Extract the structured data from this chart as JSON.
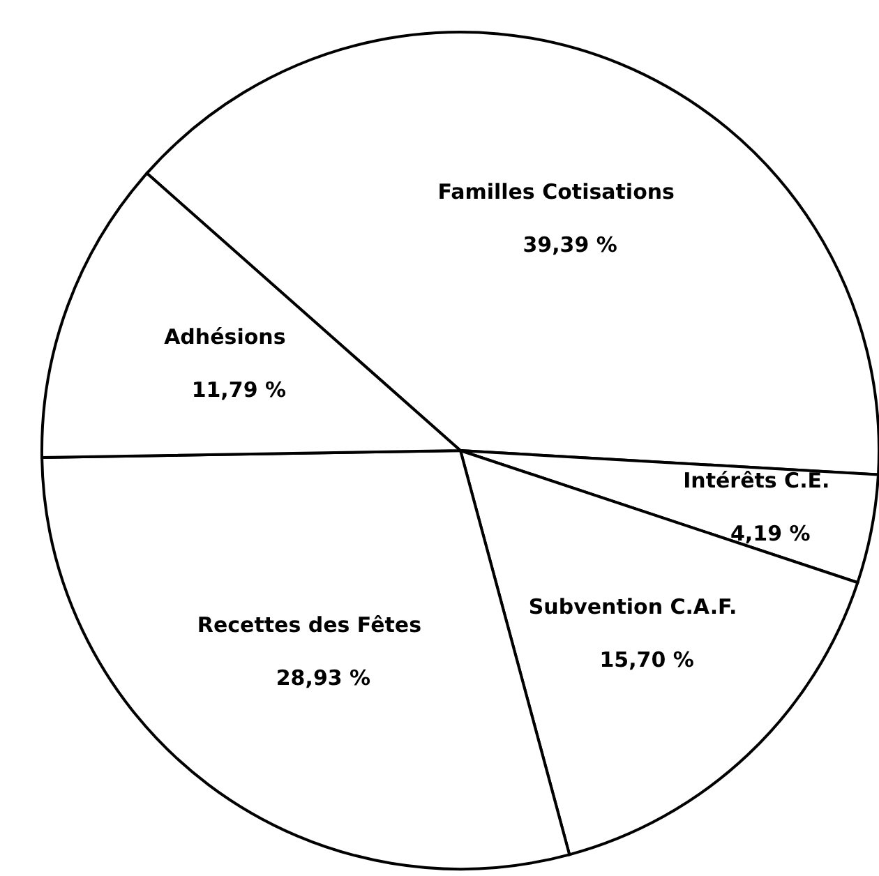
{
  "chart_data": {
    "type": "pie",
    "categories": [
      "Familles Cotisations",
      "Intérêts C.E.",
      "Subvention C.A.F.",
      "Recettes des Fêtes",
      "Adhésions"
    ],
    "values": [
      39.39,
      4.19,
      15.7,
      28.93,
      11.79
    ],
    "value_labels": [
      "39,39 %",
      "4,19 %",
      "15,70 %",
      "28,93 %",
      "11,79 %"
    ],
    "colors": [
      "#ffffff",
      "#ffffff",
      "#ffffff",
      "#ffffff",
      "#ffffff"
    ]
  }
}
